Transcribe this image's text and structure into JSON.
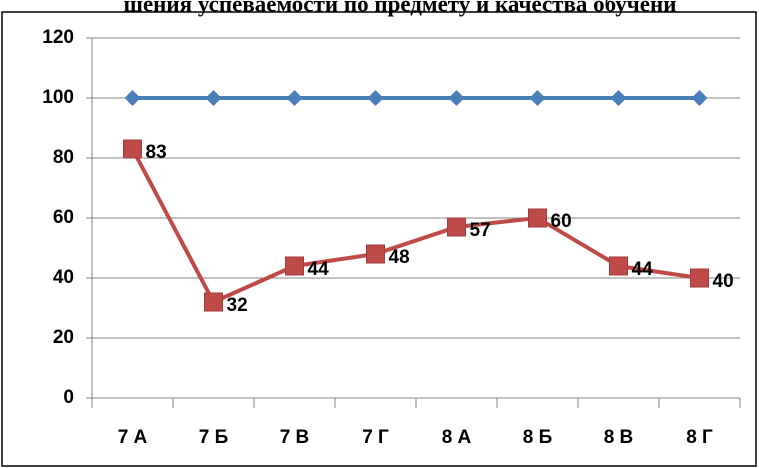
{
  "chart_data": {
    "type": "line",
    "title": "шения успеваемости по предмету и качества обучени",
    "categories": [
      "7 А",
      "7 Б",
      "7 В",
      "7 Г",
      "8 А",
      "8 Б",
      "8 В",
      "8 Г"
    ],
    "series": [
      {
        "color": "#4a7ebb",
        "values": [
          100,
          100,
          100,
          100,
          100,
          100,
          100,
          100
        ],
        "marker": "diamond",
        "data_labels": false
      },
      {
        "color": "#be4b48",
        "values": [
          83,
          32,
          44,
          48,
          57,
          60,
          44,
          40
        ],
        "marker": "square",
        "data_labels": true
      }
    ],
    "ylim": [
      0,
      120
    ],
    "yticks": [
      0,
      20,
      40,
      60,
      80,
      100,
      120
    ],
    "grid": true
  }
}
